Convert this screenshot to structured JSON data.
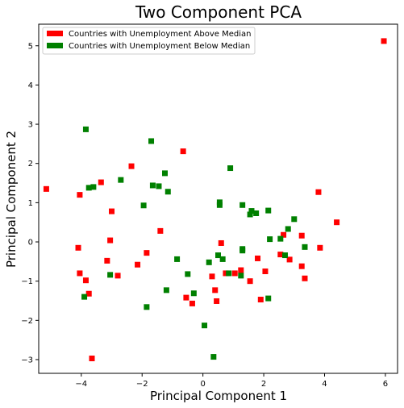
{
  "chart_data": {
    "type": "scatter",
    "title": "Two Component PCA",
    "xlabel": "Principal Component 1",
    "ylabel": "Principal Component 2",
    "xlim": [
      -5.4,
      6.4
    ],
    "ylim": [
      -3.35,
      5.55
    ],
    "xticks": [
      -4,
      -2,
      0,
      2,
      4,
      6
    ],
    "yticks": [
      -3,
      -2,
      -1,
      0,
      1,
      2,
      3,
      4,
      5
    ],
    "grid": false,
    "legend_position": "top-left",
    "series": [
      {
        "name": "Countries with Unemployment Above Median",
        "color": "#ff0000",
        "marker": "square",
        "points": [
          [
            5.95,
            5.12
          ],
          [
            -5.15,
            1.35
          ],
          [
            -4.05,
            1.2
          ],
          [
            -3.35,
            1.52
          ],
          [
            -2.35,
            1.93
          ],
          [
            -0.65,
            2.31
          ],
          [
            -3.0,
            0.78
          ],
          [
            -4.1,
            -0.15
          ],
          [
            -3.05,
            0.04
          ],
          [
            -1.4,
            0.28
          ],
          [
            -4.05,
            -0.8
          ],
          [
            -3.85,
            -0.98
          ],
          [
            -3.15,
            -0.48
          ],
          [
            -2.15,
            -0.58
          ],
          [
            -1.85,
            -0.28
          ],
          [
            -2.8,
            -0.86
          ],
          [
            -3.75,
            -1.32
          ],
          [
            -3.65,
            -2.97
          ],
          [
            -0.55,
            -1.42
          ],
          [
            -0.35,
            -1.57
          ],
          [
            0.3,
            -0.88
          ],
          [
            0.4,
            -1.23
          ],
          [
            0.45,
            -1.51
          ],
          [
            0.6,
            -0.03
          ],
          [
            0.75,
            -0.8
          ],
          [
            1.05,
            -0.8
          ],
          [
            1.25,
            -0.72
          ],
          [
            1.55,
            -1.0
          ],
          [
            1.8,
            -0.42
          ],
          [
            1.9,
            -1.47
          ],
          [
            2.05,
            -0.75
          ],
          [
            2.55,
            -0.32
          ],
          [
            2.65,
            0.18
          ],
          [
            2.85,
            -0.45
          ],
          [
            3.25,
            0.16
          ],
          [
            3.25,
            -0.62
          ],
          [
            3.35,
            -0.93
          ],
          [
            3.8,
            1.27
          ],
          [
            3.85,
            -0.15
          ],
          [
            4.4,
            0.5
          ]
        ]
      },
      {
        "name": "Countries with Unemployment Below Median",
        "color": "#008000",
        "marker": "square",
        "points": [
          [
            -3.85,
            2.87
          ],
          [
            -1.7,
            2.57
          ],
          [
            -3.75,
            1.38
          ],
          [
            -3.6,
            1.4
          ],
          [
            -2.7,
            1.58
          ],
          [
            -1.65,
            1.44
          ],
          [
            -1.45,
            1.42
          ],
          [
            -1.25,
            1.75
          ],
          [
            -1.15,
            1.28
          ],
          [
            -1.95,
            0.93
          ],
          [
            0.9,
            1.88
          ],
          [
            0.55,
            1.01
          ],
          [
            0.55,
            0.94
          ],
          [
            1.3,
            0.94
          ],
          [
            1.55,
            0.7
          ],
          [
            1.6,
            0.79
          ],
          [
            1.75,
            0.73
          ],
          [
            2.15,
            0.8
          ],
          [
            2.2,
            0.07
          ],
          [
            2.55,
            0.08
          ],
          [
            2.8,
            0.33
          ],
          [
            3.0,
            0.58
          ],
          [
            3.35,
            -0.13
          ],
          [
            0.5,
            -0.34
          ],
          [
            0.65,
            -0.44
          ],
          [
            0.2,
            -0.52
          ],
          [
            1.3,
            -0.18
          ],
          [
            1.3,
            -0.22
          ],
          [
            1.25,
            -0.86
          ],
          [
            0.85,
            -0.8
          ],
          [
            2.7,
            -0.34
          ],
          [
            -0.85,
            -0.44
          ],
          [
            -0.5,
            -0.82
          ],
          [
            -3.05,
            -0.84
          ],
          [
            -3.9,
            -1.4
          ],
          [
            -1.2,
            -1.23
          ],
          [
            -0.3,
            -1.31
          ],
          [
            -1.85,
            -1.66
          ],
          [
            2.15,
            -1.44
          ],
          [
            0.05,
            -2.13
          ],
          [
            0.35,
            -2.93
          ]
        ]
      }
    ]
  }
}
